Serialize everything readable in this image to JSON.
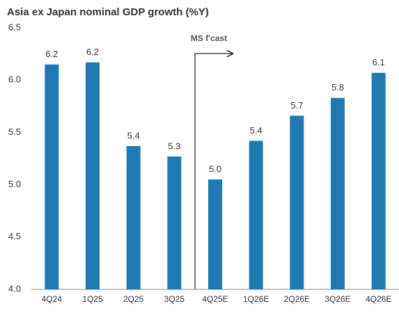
{
  "chart_data": {
    "type": "bar",
    "title": "Asia ex Japan nominal GDP growth (%Y)",
    "annotation": "MS f'cast",
    "categories": [
      "4Q24",
      "1Q25",
      "2Q25",
      "3Q25",
      "4Q25E",
      "1Q26E",
      "2Q26E",
      "3Q26E",
      "4Q26E"
    ],
    "values": [
      6.15,
      6.17,
      5.37,
      5.27,
      5.05,
      5.42,
      5.66,
      5.83,
      6.07
    ],
    "value_labels": [
      "6.2",
      "6.2",
      "5.4",
      "5.3",
      "5.0",
      "5.4",
      "5.7",
      "5.8",
      "6.1"
    ],
    "color": "#1f7ab3",
    "ylim": [
      4,
      6.5
    ],
    "yticks": [
      {
        "value": 4,
        "label": "4.0"
      },
      4.5,
      {
        "value": 5,
        "label": "5.0"
      },
      5.5,
      {
        "value": 6,
        "label": "6.0"
      },
      6.5
    ],
    "grid": false
  }
}
